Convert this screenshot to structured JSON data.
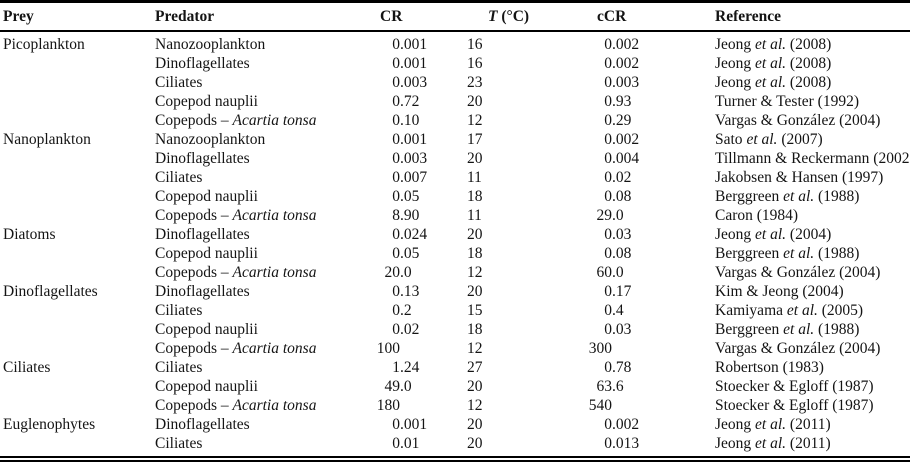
{
  "table": {
    "columns": [
      {
        "key": "prey",
        "segments": [
          {
            "t": "Prey"
          }
        ]
      },
      {
        "key": "predator",
        "segments": [
          {
            "t": "Predator"
          }
        ]
      },
      {
        "key": "cr",
        "segments": [
          {
            "t": "CR"
          }
        ]
      },
      {
        "key": "temp",
        "segments": [
          {
            "t": "T",
            "i": true
          },
          {
            "t": " (°C)"
          }
        ]
      },
      {
        "key": "ccr",
        "segments": [
          {
            "t": "cCR"
          }
        ]
      },
      {
        "key": "reference",
        "segments": [
          {
            "t": "Reference"
          }
        ]
      }
    ],
    "rows": [
      {
        "prey": "Picoplankton",
        "predator": [
          {
            "t": "Nanozooplankton"
          }
        ],
        "cr": "0.001",
        "temp": "16",
        "ccr": "0.002",
        "reference": [
          {
            "t": "Jeong "
          },
          {
            "t": "et al.",
            "i": true
          },
          {
            "t": " (2008)"
          }
        ]
      },
      {
        "prey": "",
        "predator": [
          {
            "t": "Dinoflagellates"
          }
        ],
        "cr": "0.001",
        "temp": "16",
        "ccr": "0.002",
        "reference": [
          {
            "t": "Jeong "
          },
          {
            "t": "et al.",
            "i": true
          },
          {
            "t": " (2008)"
          }
        ]
      },
      {
        "prey": "",
        "predator": [
          {
            "t": "Ciliates"
          }
        ],
        "cr": "0.003",
        "temp": "23",
        "ccr": "0.003",
        "reference": [
          {
            "t": "Jeong "
          },
          {
            "t": "et al.",
            "i": true
          },
          {
            "t": " (2008)"
          }
        ]
      },
      {
        "prey": "",
        "predator": [
          {
            "t": "Copepod nauplii"
          }
        ],
        "cr": "0.72",
        "temp": "20",
        "ccr": "0.93",
        "reference": [
          {
            "t": "Turner & Tester (1992)"
          }
        ]
      },
      {
        "prey": "",
        "predator": [
          {
            "t": "Copepods – "
          },
          {
            "t": "Acartia tonsa",
            "i": true
          }
        ],
        "cr": "0.10",
        "temp": "12",
        "ccr": "0.29",
        "reference": [
          {
            "t": "Vargas & González (2004)"
          }
        ]
      },
      {
        "prey": "Nanoplankton",
        "predator": [
          {
            "t": "Nanozooplankton"
          }
        ],
        "cr": "0.001",
        "temp": "17",
        "ccr": "0.002",
        "reference": [
          {
            "t": "Sato "
          },
          {
            "t": "et al.",
            "i": true
          },
          {
            "t": " (2007)"
          }
        ]
      },
      {
        "prey": "",
        "predator": [
          {
            "t": "Dinoflagellates"
          }
        ],
        "cr": "0.003",
        "temp": "20",
        "ccr": "0.004",
        "reference": [
          {
            "t": "Tillmann & Reckermann (2002)"
          }
        ]
      },
      {
        "prey": "",
        "predator": [
          {
            "t": "Ciliates"
          }
        ],
        "cr": "0.007",
        "temp": "11",
        "ccr": "0.02",
        "reference": [
          {
            "t": "Jakobsen & Hansen (1997)"
          }
        ]
      },
      {
        "prey": "",
        "predator": [
          {
            "t": "Copepod nauplii"
          }
        ],
        "cr": "0.05",
        "temp": "18",
        "ccr": "0.08",
        "reference": [
          {
            "t": "Berggreen "
          },
          {
            "t": "et al.",
            "i": true
          },
          {
            "t": " (1988)"
          }
        ]
      },
      {
        "prey": "",
        "predator": [
          {
            "t": "Copepods – "
          },
          {
            "t": "Acartia tonsa",
            "i": true
          }
        ],
        "cr": "8.90",
        "temp": "11",
        "ccr": "29.0",
        "reference": [
          {
            "t": "Caron (1984)"
          }
        ]
      },
      {
        "prey": "Diatoms",
        "predator": [
          {
            "t": "Dinoflagellates"
          }
        ],
        "cr": "0.024",
        "temp": "20",
        "ccr": "0.03",
        "reference": [
          {
            "t": "Jeong "
          },
          {
            "t": "et al.",
            "i": true
          },
          {
            "t": " (2004)"
          }
        ]
      },
      {
        "prey": "",
        "predator": [
          {
            "t": "Copepod nauplii"
          }
        ],
        "cr": "0.05",
        "temp": "18",
        "ccr": "0.08",
        "reference": [
          {
            "t": "Berggreen "
          },
          {
            "t": "et al.",
            "i": true
          },
          {
            "t": " (1988)"
          }
        ]
      },
      {
        "prey": "",
        "predator": [
          {
            "t": "Copepods – "
          },
          {
            "t": "Acartia tonsa",
            "i": true
          }
        ],
        "cr": "20.0",
        "temp": "12",
        "ccr": "60.0",
        "reference": [
          {
            "t": "Vargas & González (2004)"
          }
        ]
      },
      {
        "prey": "Dinoflagellates",
        "predator": [
          {
            "t": "Dinoflagellates"
          }
        ],
        "cr": "0.13",
        "temp": "20",
        "ccr": "0.17",
        "reference": [
          {
            "t": "Kim & Jeong (2004)"
          }
        ]
      },
      {
        "prey": "",
        "predator": [
          {
            "t": "Ciliates"
          }
        ],
        "cr": "0.2",
        "temp": "15",
        "ccr": "0.4",
        "reference": [
          {
            "t": "Kamiyama "
          },
          {
            "t": "et al.",
            "i": true
          },
          {
            "t": " (2005)"
          }
        ]
      },
      {
        "prey": "",
        "predator": [
          {
            "t": "Copepod nauplii"
          }
        ],
        "cr": "0.02",
        "temp": "18",
        "ccr": "0.03",
        "reference": [
          {
            "t": "Berggreen "
          },
          {
            "t": "et al.",
            "i": true
          },
          {
            "t": " (1988)"
          }
        ]
      },
      {
        "prey": "",
        "predator": [
          {
            "t": "Copepods – "
          },
          {
            "t": "Acartia tonsa",
            "i": true
          }
        ],
        "cr": "100",
        "temp": "12",
        "ccr": "300",
        "reference": [
          {
            "t": "Vargas & González (2004)"
          }
        ]
      },
      {
        "prey": "Ciliates",
        "predator": [
          {
            "t": "Ciliates"
          }
        ],
        "cr": "1.24",
        "temp": "27",
        "ccr": "0.78",
        "reference": [
          {
            "t": "Robertson (1983)"
          }
        ]
      },
      {
        "prey": "",
        "predator": [
          {
            "t": "Copepod nauplii"
          }
        ],
        "cr": "49.0",
        "temp": "20",
        "ccr": "63.6",
        "reference": [
          {
            "t": "Stoecker & Egloff (1987)"
          }
        ]
      },
      {
        "prey": "",
        "predator": [
          {
            "t": "Copepods – "
          },
          {
            "t": "Acartia tonsa",
            "i": true
          }
        ],
        "cr": "180",
        "temp": "12",
        "ccr": "540",
        "reference": [
          {
            "t": "Stoecker & Egloff (1987)"
          }
        ]
      },
      {
        "prey": "Euglenophytes",
        "predator": [
          {
            "t": "Dinoflagellates"
          }
        ],
        "cr": "0.001",
        "temp": "20",
        "ccr": "0.002",
        "reference": [
          {
            "t": "Jeong "
          },
          {
            "t": "et al.",
            "i": true
          },
          {
            "t": " (2011)"
          }
        ]
      },
      {
        "prey": "",
        "predator": [
          {
            "t": "Ciliates"
          }
        ],
        "cr": "0.01",
        "temp": "20",
        "ccr": "0.013",
        "reference": [
          {
            "t": "Jeong "
          },
          {
            "t": "et al.",
            "i": true
          },
          {
            "t": " (2011)"
          }
        ]
      }
    ]
  }
}
